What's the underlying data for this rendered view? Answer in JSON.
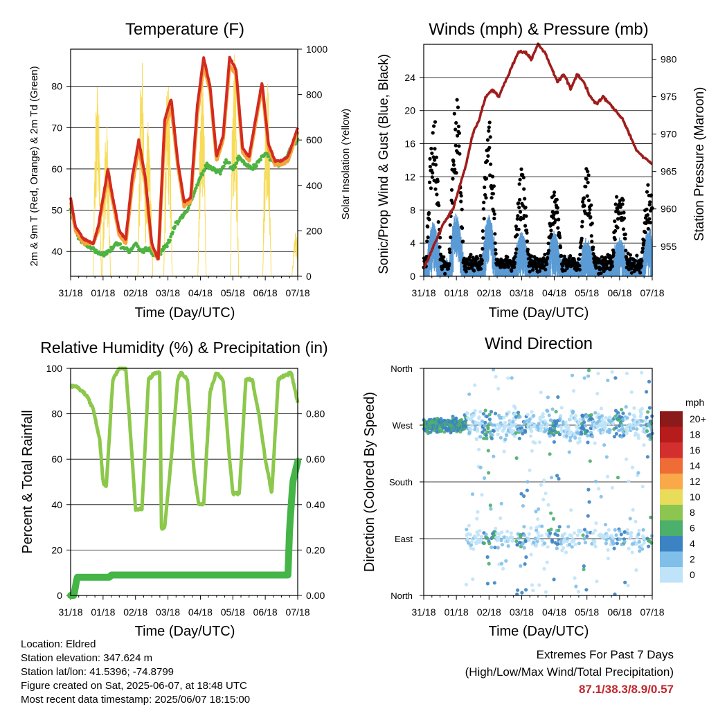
{
  "colors": {
    "red": "#d42a20",
    "orange": "#f5a43c",
    "green_td": "#4db342",
    "yellow": "#f7dc5a",
    "black": "#000000",
    "blue": "#5b9bd5",
    "maroon": "#a01c1c",
    "rh_green": "#8cc84b",
    "precip_green": "#45b548"
  },
  "days": [
    "31/18",
    "01/18",
    "02/18",
    "03/18",
    "04/18",
    "05/18",
    "06/18",
    "07/18"
  ],
  "charts": [
    {
      "id": "temperature",
      "title": "Temperature (F)",
      "xlabel": "Time (Day/UTC)",
      "ylabel_left": "2m & 9m T (Red, Orange) & 2m Td (Green)",
      "ylabel_right": "Solar Insolation (Yellow)",
      "yticks_left": [
        "40",
        "50",
        "60",
        "70",
        "80"
      ],
      "yticks_right": [
        "0",
        "200",
        "400",
        "600",
        "800",
        "1000"
      ]
    },
    {
      "id": "winds",
      "title": "Winds (mph) & Pressure (mb)",
      "xlabel": "Time (Day/UTC)",
      "ylabel_left": "Sonic/Prop Wind & Gust (Blue, Black)",
      "ylabel_right": "Station Pressure (Maroon)",
      "yticks_left": [
        "0",
        "4",
        "8",
        "12",
        "16",
        "20",
        "24"
      ],
      "yticks_right": [
        "955",
        "960",
        "965",
        "970",
        "975",
        "980"
      ]
    },
    {
      "id": "humidity",
      "title": "Relative Humidity (%) & Precipitation (in)",
      "xlabel": "Time (Day/UTC)",
      "ylabel_left": "Percent & Total Rainfall",
      "yticks_left": [
        "0",
        "20",
        "40",
        "60",
        "80",
        "100"
      ],
      "yticks_right": [
        "0.00",
        "0.20",
        "0.40",
        "0.60",
        "0.80"
      ]
    },
    {
      "id": "direction",
      "title": "Wind Direction",
      "xlabel": "Time (Day/UTC)",
      "ylabel_left": "Direction (Colored By Speed)",
      "yticks_left": [
        "North",
        "East",
        "South",
        "West",
        "North"
      ]
    }
  ],
  "colorbar": {
    "unit": "mph",
    "labels": [
      "20+",
      "18",
      "16",
      "14",
      "12",
      "10",
      "8",
      "6",
      "4",
      "2",
      "0"
    ],
    "colors": [
      "#8b1a1a",
      "#b71c1c",
      "#d32f2f",
      "#ef6c37",
      "#f9a84a",
      "#e8dc5a",
      "#8cc651",
      "#4caf6b",
      "#3c83c4",
      "#7fbfe9",
      "#bfe3f8"
    ]
  },
  "chart_data": [
    {
      "type": "line",
      "title": "Temperature (F)",
      "xlabel": "Time (Day/UTC)",
      "ylabel": "2m & 9m T (Red, Orange) & 2m Td (Green)",
      "y2label": "Solar Insolation (Yellow)",
      "x_range_days": [
        0,
        7
      ],
      "ylim": [
        34,
        89
      ],
      "y2lim": [
        0,
        1000
      ],
      "series": [
        {
          "name": "2m T",
          "color": "#d42a20",
          "x": [
            0,
            0.15,
            0.4,
            0.7,
            0.85,
            1.0,
            1.15,
            1.3,
            1.5,
            1.7,
            1.9,
            2.1,
            2.3,
            2.5,
            2.7,
            2.9,
            3.1,
            3.3,
            3.5,
            3.7,
            3.9,
            4.1,
            4.3,
            4.5,
            4.7,
            4.9,
            5.1,
            5.3,
            5.5,
            5.7,
            5.9,
            6.1,
            6.3,
            6.5,
            6.7,
            7.0
          ],
          "y": [
            53,
            46,
            43,
            42,
            46,
            53,
            60,
            53,
            45,
            43,
            58,
            67,
            58,
            42,
            38,
            72,
            77,
            62,
            52,
            53,
            75,
            87,
            80,
            63,
            68,
            87,
            84,
            65,
            63,
            72,
            81,
            66,
            62,
            62,
            63,
            70
          ]
        },
        {
          "name": "9m T",
          "color": "#f5a43c",
          "x": [
            0,
            0.15,
            0.4,
            0.7,
            0.85,
            1.0,
            1.15,
            1.3,
            1.5,
            1.7,
            1.9,
            2.1,
            2.3,
            2.5,
            2.7,
            2.9,
            3.1,
            3.3,
            3.5,
            3.7,
            3.9,
            4.1,
            4.3,
            4.5,
            4.7,
            4.9,
            5.1,
            5.3,
            5.5,
            5.7,
            5.9,
            6.1,
            6.3,
            6.5,
            6.7,
            7.0
          ],
          "y": [
            52,
            45,
            42,
            42,
            45,
            52,
            58,
            52,
            44,
            42,
            56,
            65,
            57,
            41,
            38,
            70,
            75,
            61,
            51,
            52,
            73,
            85,
            79,
            62,
            67,
            85,
            83,
            64,
            62,
            71,
            80,
            65,
            61,
            61,
            62,
            69
          ]
        },
        {
          "name": "2m Td",
          "color": "#4db342",
          "x": [
            0,
            0.2,
            0.4,
            0.6,
            0.8,
            1.0,
            1.2,
            1.4,
            1.6,
            1.8,
            2.0,
            2.2,
            2.4,
            2.6,
            2.8,
            3.0,
            3.2,
            3.4,
            3.6,
            3.8,
            4.0,
            4.2,
            4.4,
            4.6,
            4.8,
            5.0,
            5.2,
            5.4,
            5.6,
            5.8,
            6.0,
            6.2,
            6.4,
            6.6,
            6.8,
            7.0
          ],
          "y": [
            50,
            44,
            42,
            41,
            40,
            39,
            40,
            42,
            41,
            40,
            42,
            40,
            41,
            39,
            40,
            42,
            46,
            48,
            50,
            54,
            58,
            61,
            60,
            59,
            62,
            60,
            63,
            61,
            60,
            62,
            64,
            62,
            61,
            62,
            65,
            67
          ]
        },
        {
          "name": "Solar Insolation",
          "color": "#f7dc5a",
          "axis": "right",
          "peaks": [
            [
              0.82,
              880
            ],
            [
              1.1,
              700
            ],
            [
              2.2,
              1000
            ],
            [
              2.4,
              700
            ],
            [
              3.0,
              900
            ],
            [
              4.05,
              950
            ],
            [
              5.05,
              980
            ],
            [
              6.05,
              950
            ],
            [
              6.95,
              200
            ]
          ]
        }
      ]
    },
    {
      "type": "scatter",
      "title": "Winds (mph) & Pressure (mb)",
      "xlabel": "Time (Day/UTC)",
      "ylabel": "Sonic/Prop Wind & Gust (Blue, Black)",
      "y2label": "Station Pressure (Maroon)",
      "x_range_days": [
        0,
        7
      ],
      "ylim": [
        0,
        28
      ],
      "y2lim": [
        951,
        982
      ],
      "series": [
        {
          "name": "Sonic/Prop Wind",
          "color": "#5b9bd5",
          "diurnal_peaks": [
            [
              0.3,
              6
            ],
            [
              1.0,
              7
            ],
            [
              2.0,
              7
            ],
            [
              3.0,
              5
            ],
            [
              4.0,
              5
            ],
            [
              5.0,
              4
            ],
            [
              6.0,
              4
            ],
            [
              6.9,
              5
            ]
          ]
        },
        {
          "name": "Gust",
          "color": "#000000",
          "diurnal_peaks": [
            [
              0.3,
              20
            ],
            [
              1.0,
              22
            ],
            [
              2.0,
              19
            ],
            [
              3.0,
              13
            ],
            [
              4.0,
              11
            ],
            [
              5.0,
              14
            ],
            [
              6.0,
              12
            ],
            [
              6.9,
              11
            ]
          ]
        },
        {
          "name": "Station Pressure",
          "color": "#a01c1c",
          "axis": "right",
          "x": [
            0,
            0.3,
            0.6,
            0.9,
            1.1,
            1.3,
            1.5,
            1.7,
            1.9,
            2.1,
            2.3,
            2.5,
            2.7,
            2.9,
            3.1,
            3.3,
            3.5,
            3.7,
            3.9,
            4.1,
            4.3,
            4.5,
            4.7,
            4.9,
            5.1,
            5.3,
            5.5,
            5.7,
            5.9,
            6.1,
            6.3,
            6.5,
            6.7,
            7.0
          ],
          "y": [
            952,
            955,
            958,
            960,
            963,
            966,
            970,
            972,
            975,
            976,
            975,
            977,
            979,
            981,
            981,
            980,
            982,
            981,
            979,
            977,
            978,
            976,
            978,
            977,
            975,
            974,
            975,
            974,
            973,
            972,
            970,
            968,
            967,
            966
          ]
        }
      ]
    },
    {
      "type": "line",
      "title": "Relative Humidity (%) & Precipitation (in)",
      "xlabel": "Time (Day/UTC)",
      "ylabel": "Percent & Total Rainfall",
      "x_range_days": [
        0,
        7
      ],
      "ylim": [
        0,
        100
      ],
      "y2lim": [
        0,
        1.0
      ],
      "series": [
        {
          "name": "Relative Humidity",
          "color": "#8cc84b",
          "x": [
            0,
            0.2,
            0.5,
            0.7,
            0.9,
            1.0,
            1.1,
            1.3,
            1.5,
            1.7,
            1.9,
            2.0,
            2.2,
            2.4,
            2.6,
            2.75,
            2.8,
            2.9,
            3.1,
            3.3,
            3.4,
            3.6,
            3.8,
            3.95,
            4.1,
            4.3,
            4.5,
            4.7,
            4.9,
            5.0,
            5.2,
            5.4,
            5.6,
            5.8,
            6.0,
            6.2,
            6.4,
            6.6,
            6.8,
            7.0
          ],
          "y": [
            92,
            92,
            88,
            82,
            68,
            50,
            48,
            95,
            100,
            100,
            60,
            38,
            38,
            95,
            98,
            98,
            30,
            30,
            60,
            95,
            98,
            95,
            55,
            40,
            40,
            90,
            98,
            95,
            60,
            45,
            45,
            95,
            95,
            80,
            60,
            45,
            95,
            97,
            98,
            85
          ]
        },
        {
          "name": "Total Rainfall",
          "color": "#45b548",
          "axis": "right",
          "x": [
            0,
            0.1,
            0.2,
            1.2,
            1.25,
            6.7,
            6.75,
            6.85,
            7.0
          ],
          "y": [
            0,
            0,
            0.08,
            0.08,
            0.09,
            0.09,
            0.3,
            0.5,
            0.59
          ]
        }
      ]
    },
    {
      "type": "scatter",
      "title": "Wind Direction",
      "xlabel": "Time (Day/UTC)",
      "ylabel": "Direction (Colored By Speed)",
      "x_range_days": [
        0,
        7
      ],
      "ylim_labels": [
        "North",
        "East",
        "South",
        "West",
        "North"
      ],
      "series": [
        {
          "name": "Direction",
          "color_by": "speed_mph",
          "dominant": "West",
          "secondary": "East"
        }
      ]
    }
  ],
  "info": {
    "location": "Location: Eldred",
    "elevation": "Station elevation: 347.624 m",
    "latlon": "Station lat/lon: 41.5396; -74.8799",
    "created": "Figure created on Sat, 2025-06-07, at 18:48 UTC",
    "recent": "Most recent data timestamp: 2025/06/07 18:15:00"
  },
  "extremes": {
    "line1": "Extremes For Past 7 Days",
    "line2": "(High/Low/Max Wind/Total Precipitation)",
    "values": "87.1/38.3/8.9/0.57"
  }
}
